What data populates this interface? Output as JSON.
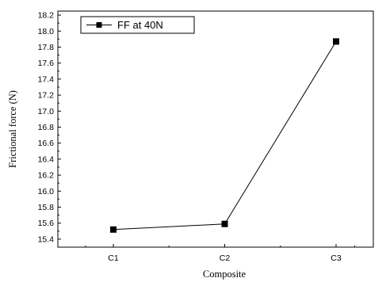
{
  "chart_data": {
    "type": "line",
    "xlabel": "Composite",
    "ylabel": "Frictional force (N)",
    "categories": [
      "C1",
      "C2",
      "C3"
    ],
    "series": [
      {
        "name": "FF at 40N",
        "values": [
          15.52,
          15.59,
          17.87
        ],
        "color": "#000000",
        "marker": "square"
      }
    ],
    "ylim": [
      15.3,
      18.25
    ],
    "yticks": [
      15.4,
      15.6,
      15.8,
      16.0,
      16.2,
      16.4,
      16.6,
      16.8,
      17.0,
      17.2,
      17.4,
      17.6,
      17.8,
      18.0,
      18.2
    ],
    "ytick_labels": [
      "15.4",
      "15.6",
      "15.8",
      "16.0",
      "16.2",
      "16.4",
      "16.6",
      "16.8",
      "17.0",
      "17.2",
      "17.4",
      "17.6",
      "17.8",
      "18.0",
      "18.2"
    ],
    "legend_position": "top-left",
    "grid": false
  }
}
